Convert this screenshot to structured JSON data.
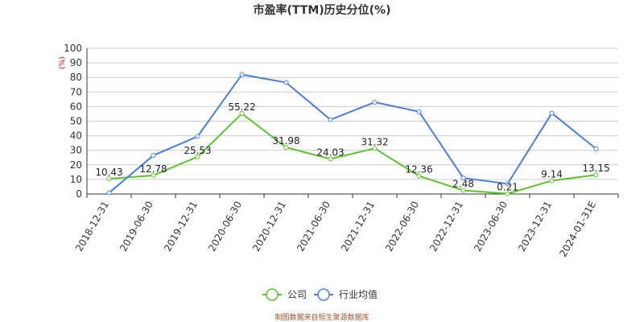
{
  "chart_data": {
    "type": "line",
    "title": "市盈率(TTM)历史分位(%)",
    "unit_label": "(%)",
    "categories": [
      "2018-12-31",
      "2019-06-30",
      "2019-12-31",
      "2020-06-30",
      "2020-12-31",
      "2021-06-30",
      "2021-12-31",
      "2022-06-30",
      "2022-12-31",
      "2023-06-30",
      "2023-12-31",
      "2024-01-31E"
    ],
    "ylim": [
      0,
      100
    ],
    "yticks": [
      0,
      10,
      20,
      30,
      40,
      50,
      60,
      70,
      80,
      90,
      100
    ],
    "grid": true,
    "legend_position": "bottom",
    "series": [
      {
        "name": "公司",
        "color": "#5cc22d",
        "show_labels": true,
        "values": [
          10.43,
          12.78,
          25.53,
          55.22,
          31.98,
          24.03,
          31.32,
          12.36,
          2.48,
          0.21,
          9.14,
          13.15
        ]
      },
      {
        "name": "行业均值",
        "color": "#4a7fd8",
        "show_labels": false,
        "values": [
          0.8,
          26.5,
          39.5,
          82.0,
          76.5,
          51.0,
          63.0,
          56.5,
          11.0,
          7.0,
          55.5,
          31.0
        ]
      }
    ]
  },
  "footer": {
    "source": "制图数据来自恒生聚源数据库"
  }
}
